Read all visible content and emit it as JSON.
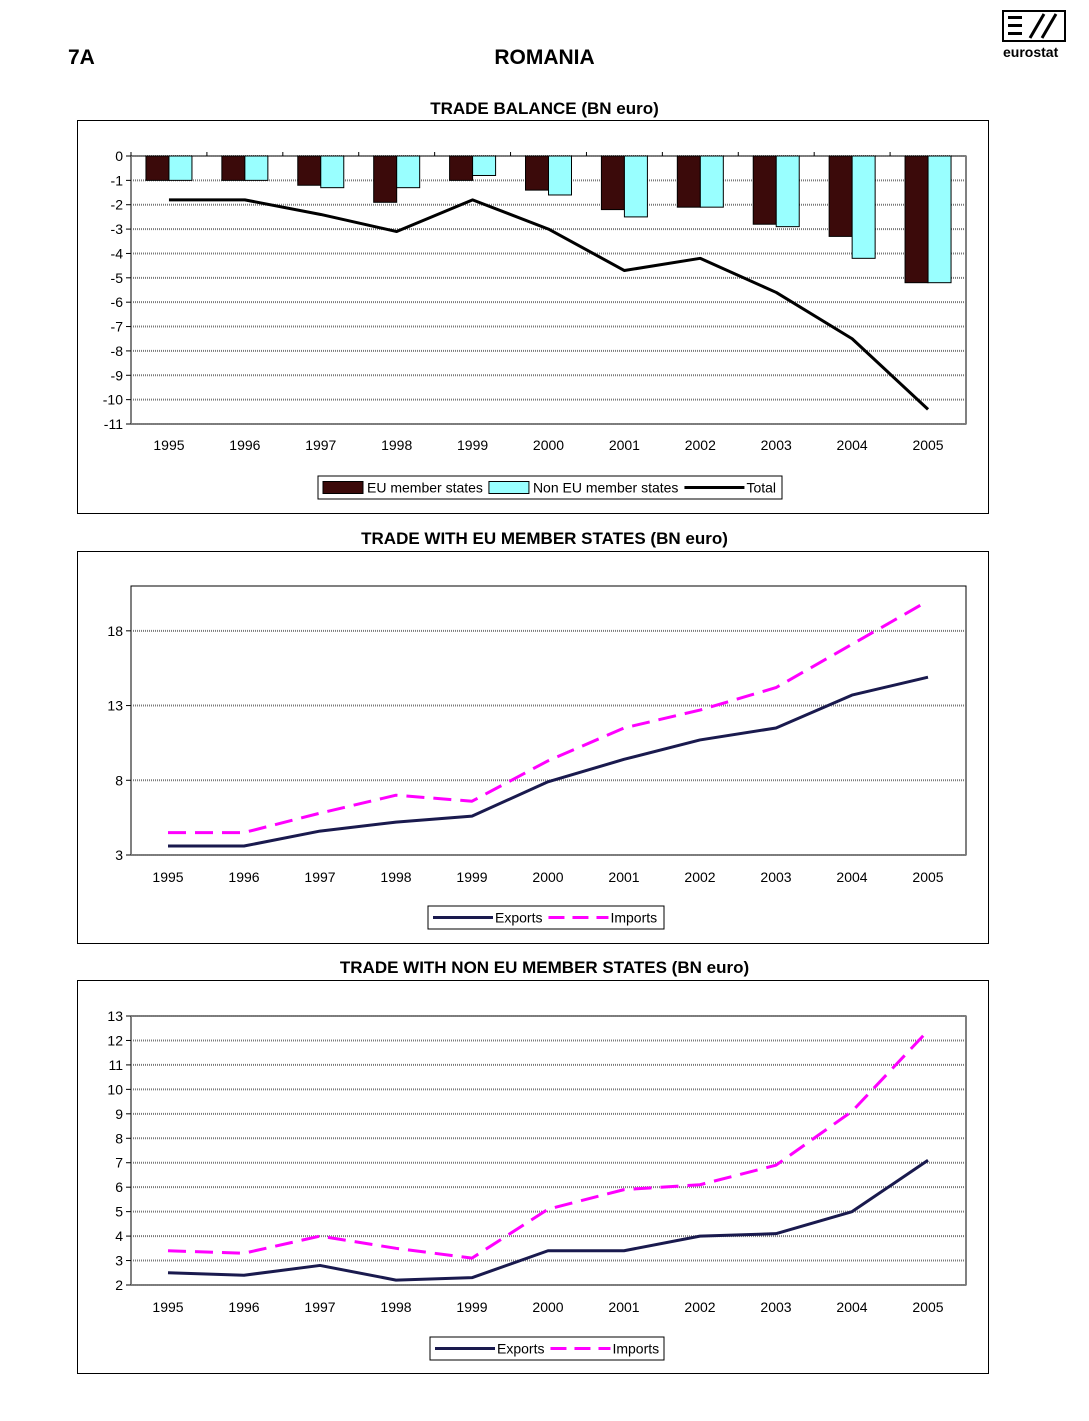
{
  "page": {
    "label": "7A",
    "title": "ROMANIA",
    "logo_text": "eurostat"
  },
  "chart_data": [
    {
      "type": "bar",
      "title": "TRADE BALANCE (BN euro)",
      "categories": [
        "1995",
        "1996",
        "1997",
        "1998",
        "1999",
        "2000",
        "2001",
        "2002",
        "2003",
        "2004",
        "2005"
      ],
      "ylim": [
        -11,
        0
      ],
      "yticks": [
        0,
        -1,
        -2,
        -3,
        -4,
        -5,
        -6,
        -7,
        -8,
        -9,
        -10,
        -11
      ],
      "grid": true,
      "legend": "bottom",
      "series": [
        {
          "name": "EU member states",
          "kind": "bar",
          "color": "#3b0a0a",
          "values": [
            -1.0,
            -1.0,
            -1.2,
            -1.9,
            -1.0,
            -1.4,
            -2.2,
            -2.1,
            -2.8,
            -3.3,
            -5.2
          ]
        },
        {
          "name": "Non EU member states",
          "kind": "bar",
          "color": "#99ffff",
          "values": [
            -1.0,
            -1.0,
            -1.3,
            -1.3,
            -0.8,
            -1.6,
            -2.5,
            -2.1,
            -2.9,
            -4.2,
            -5.2
          ]
        },
        {
          "name": "Total",
          "kind": "line",
          "color": "#000000",
          "values": [
            -1.8,
            -1.8,
            -2.4,
            -3.1,
            -1.8,
            -3.0,
            -4.7,
            -4.2,
            -5.6,
            -7.5,
            -10.4
          ]
        }
      ]
    },
    {
      "type": "line",
      "title": "TRADE WITH EU MEMBER STATES  (BN euro)",
      "categories": [
        "1995",
        "1996",
        "1997",
        "1998",
        "1999",
        "2000",
        "2001",
        "2002",
        "2003",
        "2004",
        "2005"
      ],
      "ylim": [
        3,
        21
      ],
      "yticks": [
        3,
        8,
        13,
        18
      ],
      "grid": true,
      "legend": "bottom",
      "series": [
        {
          "name": "Exports",
          "color": "#1a1a4e",
          "dash": false,
          "values": [
            3.6,
            3.6,
            4.6,
            5.2,
            5.6,
            7.9,
            9.4,
            10.7,
            11.5,
            13.7,
            14.9
          ]
        },
        {
          "name": "Imports",
          "color": "#ff00ff",
          "dash": true,
          "values": [
            4.5,
            4.5,
            5.8,
            7.0,
            6.6,
            9.3,
            11.5,
            12.7,
            14.2,
            17.1,
            20.0
          ]
        }
      ]
    },
    {
      "type": "line",
      "title": "TRADE WITH NON EU MEMBER STATES  (BN euro)",
      "categories": [
        "1995",
        "1996",
        "1997",
        "1998",
        "1999",
        "2000",
        "2001",
        "2002",
        "2003",
        "2004",
        "2005"
      ],
      "ylim": [
        2,
        13
      ],
      "yticks": [
        2,
        3,
        4,
        5,
        6,
        7,
        8,
        9,
        10,
        11,
        12,
        13
      ],
      "grid": true,
      "legend": "bottom",
      "series": [
        {
          "name": "Exports",
          "color": "#1a1a4e",
          "dash": false,
          "values": [
            2.5,
            2.4,
            2.8,
            2.2,
            2.3,
            3.4,
            3.4,
            4.0,
            4.1,
            5.0,
            7.1
          ]
        },
        {
          "name": "Imports",
          "color": "#ff00ff",
          "dash": true,
          "values": [
            3.4,
            3.3,
            4.0,
            3.5,
            3.1,
            5.1,
            5.9,
            6.1,
            6.9,
            9.1,
            12.4
          ]
        }
      ]
    }
  ]
}
